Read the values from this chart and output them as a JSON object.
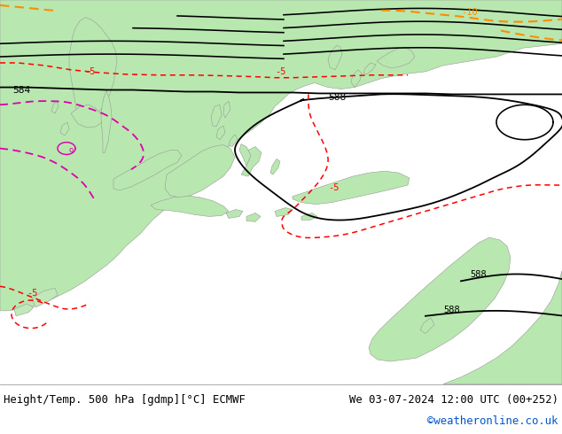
{
  "title_left": "Height/Temp. 500 hPa [gdmp][°C] ECMWF",
  "title_right": "We 03-07-2024 12:00 UTC (00+252)",
  "watermark": "©weatheronline.co.uk",
  "ocean_color": "#e8e8e8",
  "land_color": "#b8e8b0",
  "land_edge": "#999999",
  "footer_bg": "#ffffff",
  "watermark_color": "#0055cc",
  "fig_width": 6.34,
  "fig_height": 4.9,
  "dpi": 100,
  "contour_black_lw": 1.3,
  "contour_red_lw": 1.1,
  "contour_orange_lw": 1.5,
  "contour_pink_lw": 1.3
}
